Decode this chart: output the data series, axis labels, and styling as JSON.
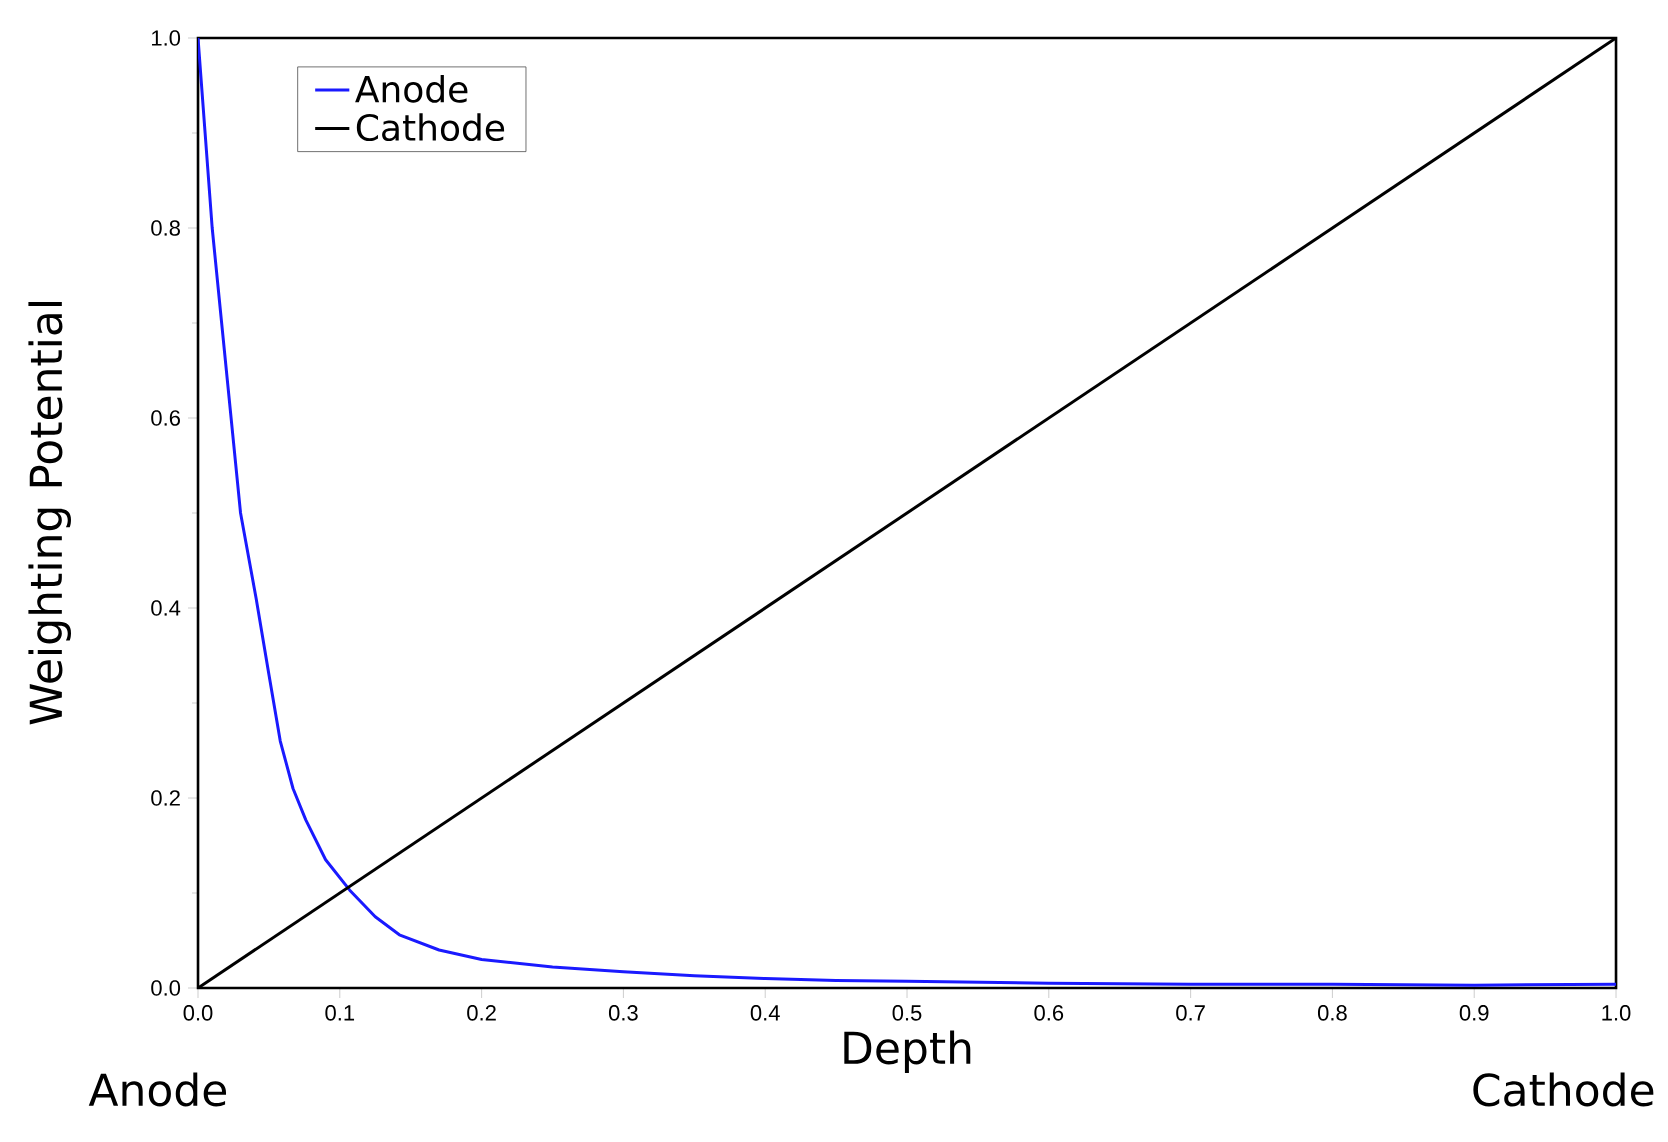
{
  "chart_data": {
    "type": "line",
    "xlabel": "Depth",
    "ylabel": "Weighting Potential",
    "annotations": [
      "Anode",
      "Cathode"
    ],
    "xlim": [
      0,
      1
    ],
    "ylim": [
      0,
      1
    ],
    "xticks": [
      {
        "value": 0,
        "label": "0.0"
      },
      0.1,
      0.2,
      0.3,
      0.4,
      0.5,
      0.6,
      0.7,
      0.8,
      0.9,
      {
        "value": 1,
        "label": "1.0"
      }
    ],
    "yticks": [
      {
        "value": 0,
        "label": "0.0"
      },
      0.2,
      0.4,
      0.6,
      0.8,
      {
        "value": 1,
        "label": "1.0"
      }
    ],
    "legend": "top left",
    "grid": false,
    "marker": "none",
    "line_style": "solid",
    "series": [
      {
        "name": "Anode",
        "color": "#1a1aff",
        "x": [
          0,
          0.005,
          0.01,
          0.02,
          0.03,
          0.041,
          0.05,
          0.058,
          0.067,
          0.076,
          0.09,
          0.107,
          0.125,
          0.142,
          0.17,
          0.2,
          0.25,
          0.3,
          0.35,
          0.4,
          0.45,
          0.5,
          0.6,
          0.7,
          0.8,
          0.9,
          1.0
        ],
        "values": [
          1.0,
          0.9,
          0.8,
          0.65,
          0.5,
          0.41,
          0.33,
          0.26,
          0.21,
          0.177,
          0.135,
          0.103,
          0.075,
          0.056,
          0.04,
          0.03,
          0.022,
          0.017,
          0.013,
          0.01,
          0.008,
          0.007,
          0.005,
          0.004,
          0.004,
          0.003,
          0.004
        ]
      },
      {
        "name": "Cathode",
        "color": "#000000",
        "x": [
          0,
          1
        ],
        "values": [
          0,
          1
        ]
      }
    ]
  }
}
